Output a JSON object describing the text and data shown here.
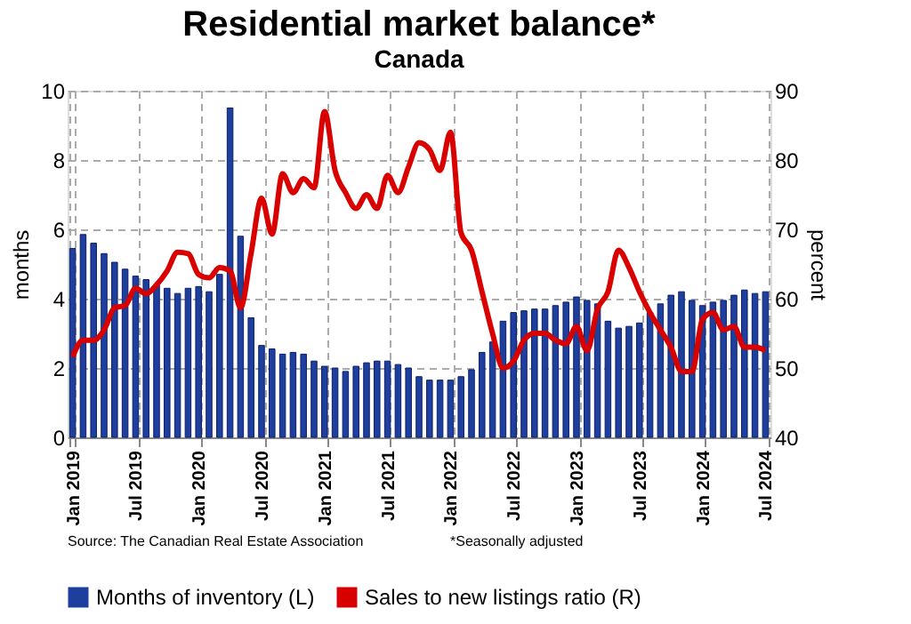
{
  "chart_data": {
    "type": "bar",
    "title": "Residential market balance*",
    "subtitle": "Canada",
    "ylabel": "months",
    "y2label": "percent",
    "categories": [
      "Jan 2019",
      null,
      null,
      null,
      null,
      null,
      "Jul 2019",
      null,
      null,
      null,
      null,
      null,
      "Jan 2020",
      null,
      null,
      null,
      null,
      null,
      "Jul 2020",
      null,
      null,
      null,
      null,
      null,
      "Jan 2021",
      null,
      null,
      null,
      null,
      null,
      "Jul 2021",
      null,
      null,
      null,
      null,
      null,
      "Jan 2022",
      null,
      null,
      null,
      null,
      null,
      "Jul 2022",
      null,
      null,
      null,
      null,
      null,
      "Jan 2023",
      null,
      null,
      null,
      null,
      null,
      "Jul 2023",
      null,
      null,
      null,
      null,
      null,
      "Jan 2024",
      null,
      null,
      null,
      null,
      null,
      "Jul 2024"
    ],
    "series": [
      {
        "name": "Months of inventory (L)",
        "color": "#1f3f9e",
        "values": [
          5.45,
          5.85,
          5.6,
          5.3,
          5.05,
          4.85,
          4.65,
          4.55,
          4.4,
          4.3,
          4.15,
          4.3,
          4.35,
          4.2,
          4.7,
          9.5,
          5.8,
          3.45,
          2.65,
          2.55,
          2.4,
          2.45,
          2.4,
          2.2,
          2.05,
          2.0,
          1.9,
          2.05,
          2.15,
          2.2,
          2.2,
          2.1,
          2.0,
          1.75,
          1.65,
          1.65,
          1.65,
          1.75,
          1.95,
          2.45,
          2.75,
          3.35,
          3.6,
          3.65,
          3.7,
          3.7,
          3.8,
          3.9,
          4.05,
          3.95,
          3.85,
          3.35,
          3.15,
          3.2,
          3.3,
          3.6,
          3.85,
          4.1,
          4.2,
          3.95,
          3.8,
          3.9,
          3.95,
          4.1,
          4.25,
          4.15,
          4.2
        ]
      },
      {
        "name": "Sales to new listings ratio (R)",
        "type": "line",
        "axis": "y2",
        "color": "#d90000",
        "values": [
          51.6,
          54,
          54,
          55.5,
          58.7,
          59,
          61.5,
          60.7,
          62,
          64,
          66.7,
          66.5,
          63.5,
          63,
          64.5,
          64,
          58.7,
          66.5,
          74.5,
          69.3,
          78,
          75.3,
          77.3,
          76,
          87,
          78.5,
          75.3,
          73,
          75,
          73,
          77.8,
          75.3,
          79,
          82.5,
          81.5,
          78.5,
          84,
          69.5,
          67,
          61,
          55,
          50,
          51,
          54,
          55,
          55,
          54,
          53.5,
          56,
          52.5,
          58.5,
          61,
          67,
          64.5,
          61,
          58,
          55.5,
          53,
          49.5,
          49.5,
          57,
          58,
          55.5,
          56,
          53,
          53,
          52.5
        ]
      }
    ],
    "ylim": [
      0,
      10
    ],
    "yticks": [
      0,
      2,
      4,
      6,
      8,
      10
    ],
    "y2lim": [
      40,
      90
    ],
    "y2ticks": [
      40,
      50,
      60,
      70,
      80,
      90
    ],
    "grid": true,
    "legend": "bottom",
    "annotations": [
      "Source: The Canadian Real Estate Association",
      "*Seasonally adjusted"
    ]
  }
}
